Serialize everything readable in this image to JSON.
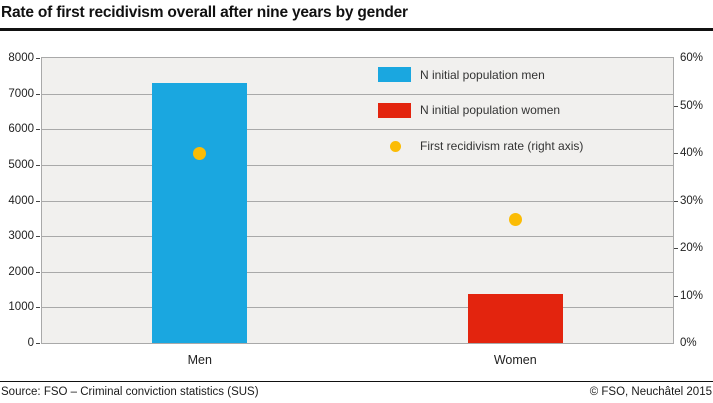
{
  "page": {
    "title": "Rate of first recidivism overall after nine years by gender",
    "footer": {
      "source": "Source: FSO – Criminal conviction statistics (SUS)",
      "copyright": "© FSO, Neuchâtel 2015"
    }
  },
  "legend": {
    "items": [
      {
        "label": "N initial population men",
        "swatch": "rect",
        "color": "#1aa7e0"
      },
      {
        "label": "N initial population women",
        "swatch": "rect",
        "color": "#e3240e"
      },
      {
        "label": "First recidivism rate (right axis)",
        "swatch": "dot",
        "color": "#fbbc05"
      }
    ]
  },
  "chart_data": {
    "type": "bar",
    "title": "Rate of first recidivism overall after nine years by gender",
    "categories": [
      "Men",
      "Women"
    ],
    "series": [
      {
        "name": "N initial population men",
        "type": "bar",
        "axis": "left",
        "color": "#1aa7e0",
        "values": [
          7300,
          null
        ]
      },
      {
        "name": "N initial population women",
        "type": "bar",
        "axis": "left",
        "color": "#e3240e",
        "values": [
          null,
          1370
        ]
      },
      {
        "name": "First recidivism rate (right axis)",
        "type": "scatter",
        "axis": "right",
        "color": "#fbbc05",
        "values": [
          40,
          26
        ]
      }
    ],
    "left_axis": {
      "min": 0,
      "max": 8000,
      "step": 1000
    },
    "right_axis": {
      "min": 0,
      "max": 60,
      "step": 10,
      "suffix": "%"
    },
    "grid": true,
    "legend_position": "top-right",
    "plot_background": "#f1f0ee",
    "grid_color": "#a9a9a9"
  }
}
